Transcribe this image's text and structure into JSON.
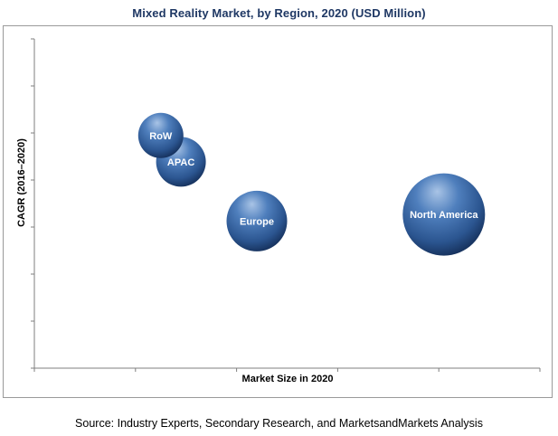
{
  "chart_data": {
    "type": "bubble",
    "title": "Mixed Reality Market, by Region, 2020 (USD Million)",
    "xlabel": "Market Size in 2020",
    "ylabel": "CAGR (2016–2020)",
    "axis_values_shown": false,
    "grid": false,
    "legend": "none",
    "series": [
      {
        "name": "RoW",
        "x": 1.25,
        "y": 5.3,
        "size": 0.6
      },
      {
        "name": "APAC",
        "x": 1.45,
        "y": 4.7,
        "size": 0.72
      },
      {
        "name": "Europe",
        "x": 2.2,
        "y": 3.35,
        "size": 1.0
      },
      {
        "name": "North America",
        "x": 4.05,
        "y": 3.5,
        "size": 2.1
      }
    ],
    "xlim": [
      0,
      5
    ],
    "ylim": [
      0,
      7.5
    ],
    "x_ticks": 5,
    "y_ticks": 7,
    "colors": {
      "bubble": "#3b6aa8",
      "bubble_dark": "#17335f",
      "bubble_light": "#a9c4e6",
      "axis": "#7f7f7f",
      "title": "#1f3864"
    }
  },
  "source": "Source: Industry Experts, Secondary Research, and MarketsandMarkets Analysis"
}
